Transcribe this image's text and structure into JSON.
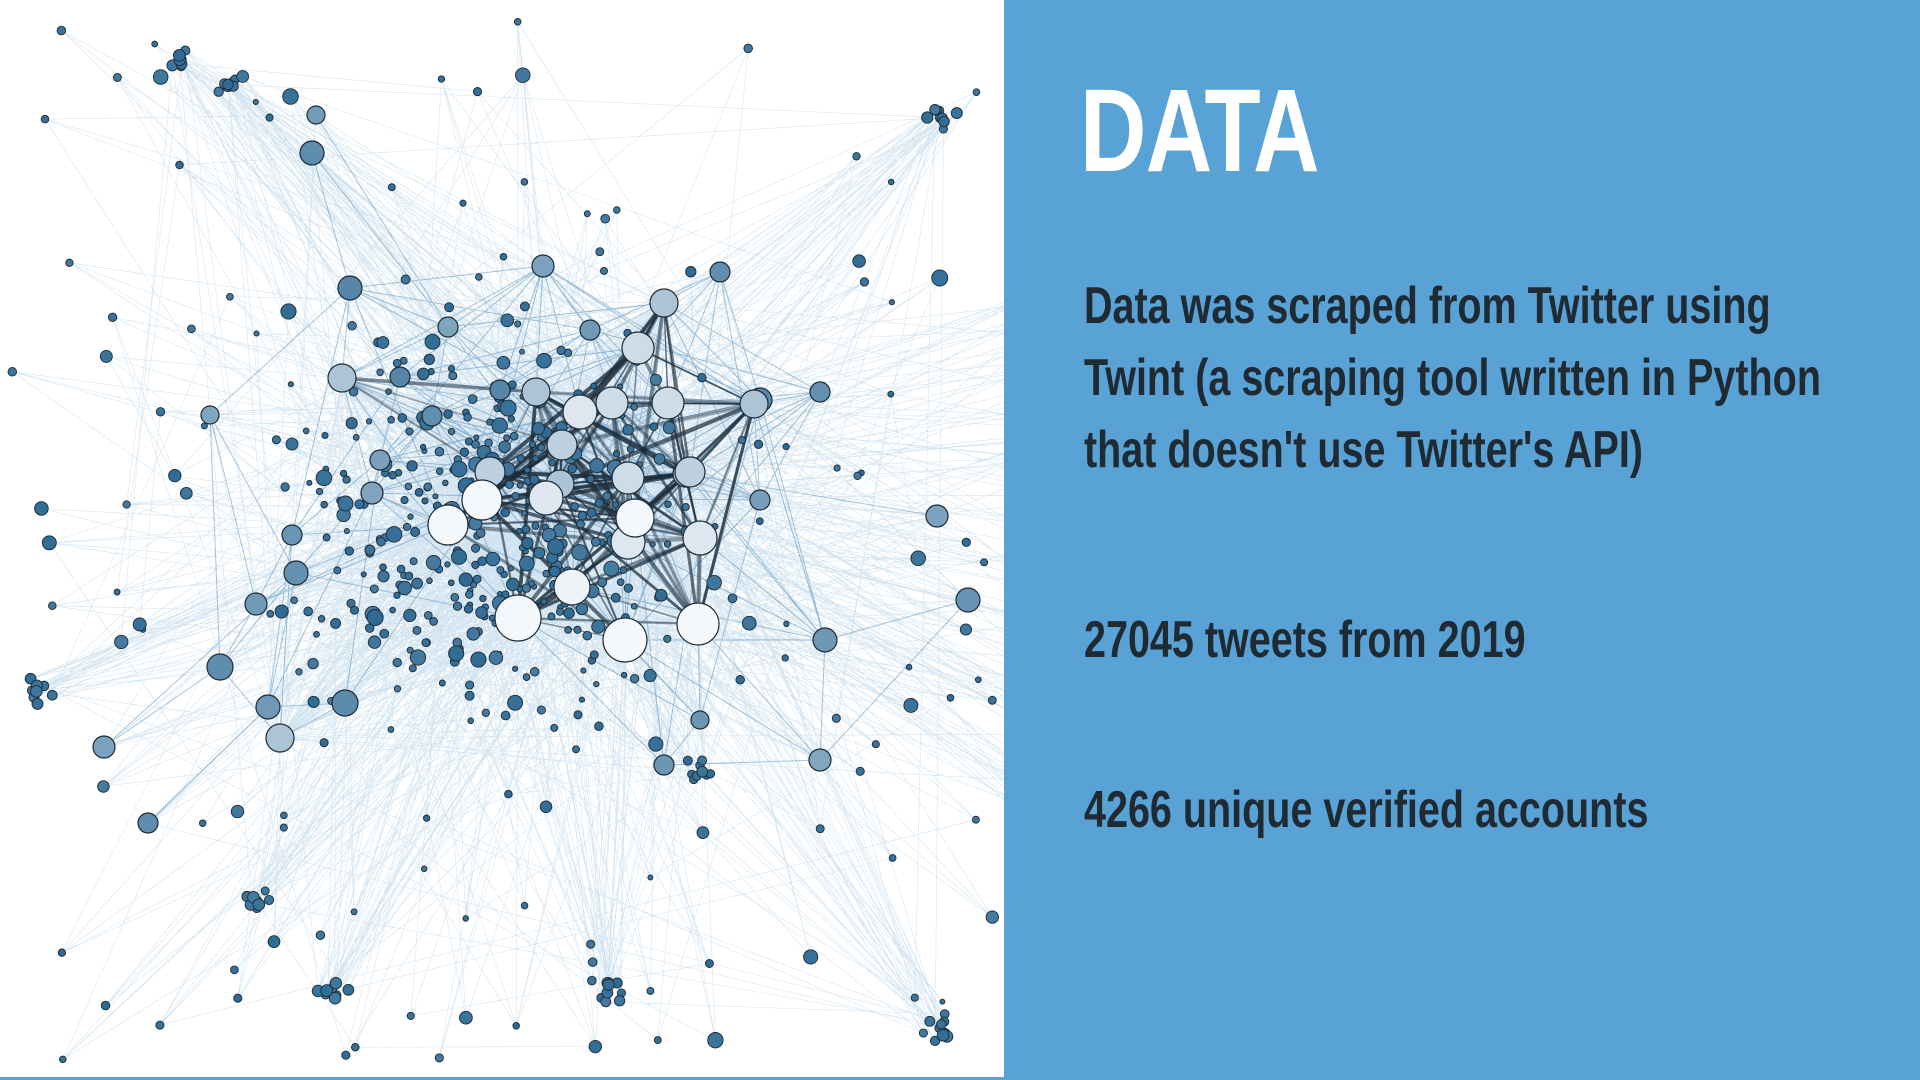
{
  "slide": {
    "title": "DATA",
    "paragraph_1": {
      "line_1": "Data was scraped from Twitter using",
      "line_2": "Twint (a scraping tool written in Python",
      "line_3": "that doesn't use Twitter's API)"
    },
    "paragraph_2": "27045 tweets from 2019",
    "paragraph_3": "4266 unique verified accounts"
  },
  "colors": {
    "panel_background": "#58a2d6",
    "title_text": "#ffffff",
    "body_text": "#1f2a33",
    "edge_light": "#7aaed3",
    "edge_dark": "#1b2c3a",
    "node_dark": "#2e6a94",
    "node_light": "#ffffff",
    "node_stroke": "#1c2b36"
  },
  "image": {
    "description_icon": "network-graph-illustration"
  }
}
